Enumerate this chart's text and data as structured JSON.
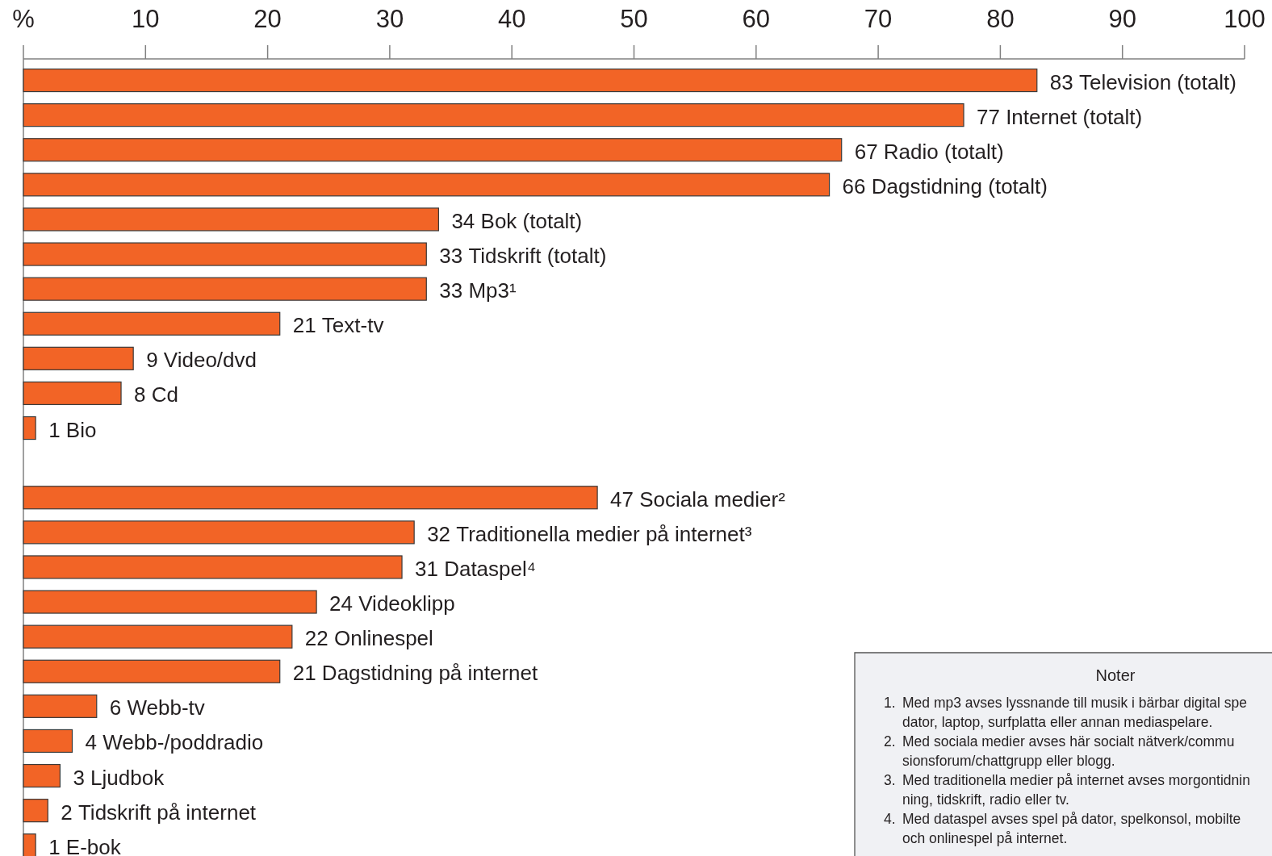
{
  "chart_data": {
    "type": "bar",
    "orientation": "horizontal",
    "categories": [
      "Television (totalt)",
      "Internet (totalt)",
      "Radio (totalt)",
      "Dagstidning (totalt)",
      "Bok (totalt)",
      "Tidskrift (totalt)",
      "Mp3¹",
      "Text-tv",
      "Video/dvd",
      "Cd",
      "Bio",
      null,
      "Sociala medier²",
      "Traditionella medier på internet³",
      "Dataspel⁴",
      "Videoklipp",
      "Onlinespel",
      "Dagstidning på internet",
      "Webb-tv",
      "Webb-/poddradio",
      "Ljudbok",
      "Tidskrift på internet",
      "E-bok"
    ],
    "values": [
      83,
      77,
      67,
      66,
      34,
      33,
      33,
      21,
      9,
      8,
      1,
      null,
      47,
      32,
      31,
      24,
      22,
      21,
      6,
      4,
      3,
      2,
      1
    ],
    "color": "#f26426",
    "xlim": [
      0,
      100
    ],
    "xticks": [
      {
        "value": 0,
        "label": "%"
      },
      10,
      20,
      30,
      40,
      50,
      60,
      70,
      80,
      90,
      100
    ],
    "data_labels": true,
    "annotations": [
      "Noter",
      "1. Med mp3 avses lyssnande till musik i bärbar digital spe",
      "dator, laptop, surfplatta eller annan mediaspelare.",
      "2. Med sociala medier avses här socialt nätverk/commu",
      "sionsforum/chattgrupp eller blogg.",
      "3. Med traditionella medier på internet avses morgontidnin",
      "ning, tidskrift, radio eller tv.",
      "4. Med dataspel avses spel på dator, spelkonsol, mobilte",
      "och onlinespel på internet."
    ]
  }
}
